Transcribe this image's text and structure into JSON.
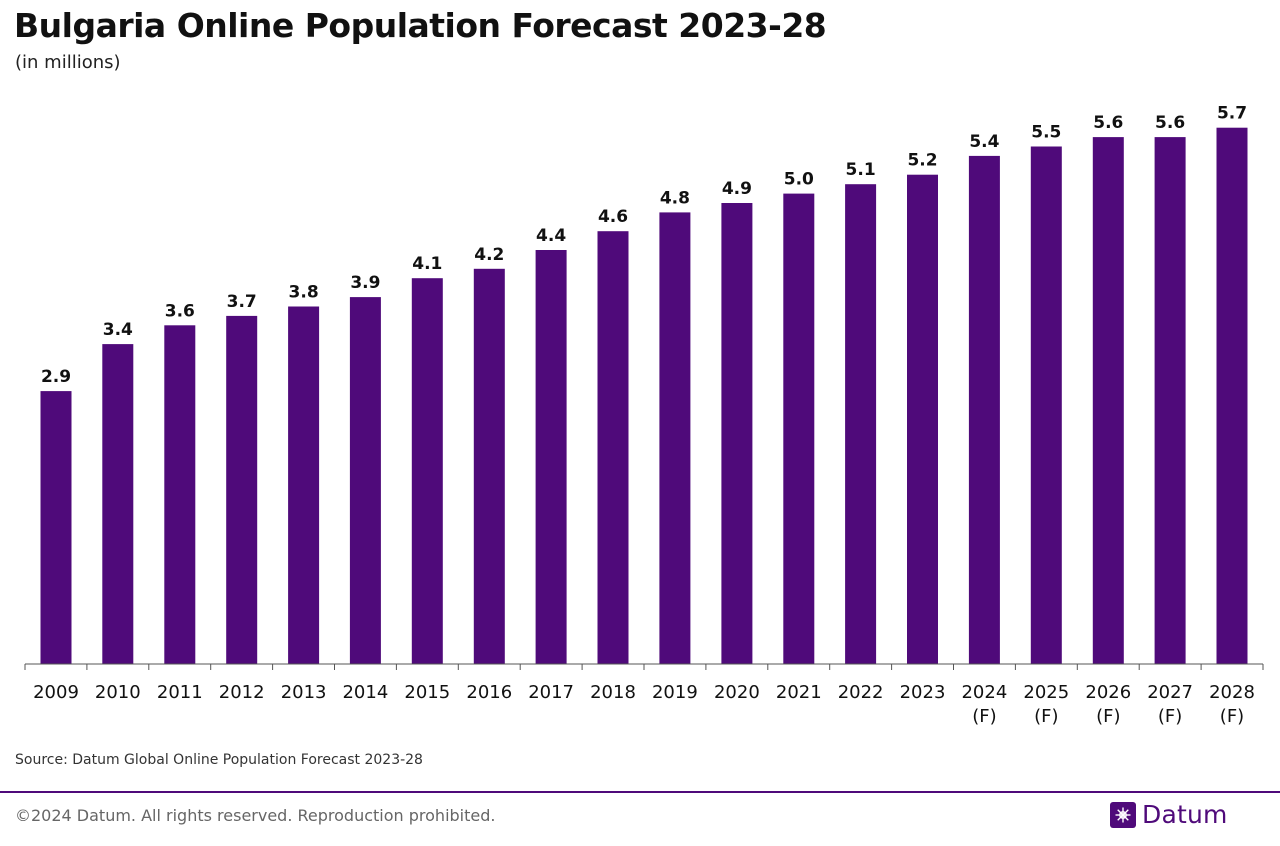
{
  "chart_data": {
    "type": "bar",
    "title": "Bulgaria Online Population Forecast 2023-28",
    "subtitle": "(in millions)",
    "categories": [
      [
        "2009"
      ],
      [
        "2010"
      ],
      [
        "2011"
      ],
      [
        "2012"
      ],
      [
        "2013"
      ],
      [
        "2014"
      ],
      [
        "2015"
      ],
      [
        "2016"
      ],
      [
        "2017"
      ],
      [
        "2018"
      ],
      [
        "2019"
      ],
      [
        "2020"
      ],
      [
        "2021"
      ],
      [
        "2022"
      ],
      [
        "2023"
      ],
      [
        "2024",
        "(F)"
      ],
      [
        "2025",
        "(F)"
      ],
      [
        "2026",
        "(F)"
      ],
      [
        "2027",
        "(F)"
      ],
      [
        "2028",
        "(F)"
      ]
    ],
    "values": [
      2.9,
      3.4,
      3.6,
      3.7,
      3.8,
      3.9,
      4.1,
      4.2,
      4.4,
      4.6,
      4.8,
      4.9,
      5.0,
      5.1,
      5.2,
      5.4,
      5.5,
      5.6,
      5.6,
      5.7
    ],
    "value_labels": [
      "2.9",
      "3.4",
      "3.6",
      "3.7",
      "3.8",
      "3.9",
      "4.1",
      "4.2",
      "4.4",
      "4.6",
      "4.8",
      "4.9",
      "5.0",
      "5.1",
      "5.2",
      "5.4",
      "5.5",
      "5.6",
      "5.6",
      "5.7"
    ],
    "ylim": [
      0,
      5.75
    ],
    "grid": false,
    "bar_color": "#4f0a7a"
  },
  "source": "Source: Datum Global Online Population Forecast 2023-28",
  "footer": {
    "copyright": "©2024 Datum. All rights reserved. Reproduction prohibited.",
    "brand": "Datum",
    "brand_color": "#4f0a7a"
  }
}
